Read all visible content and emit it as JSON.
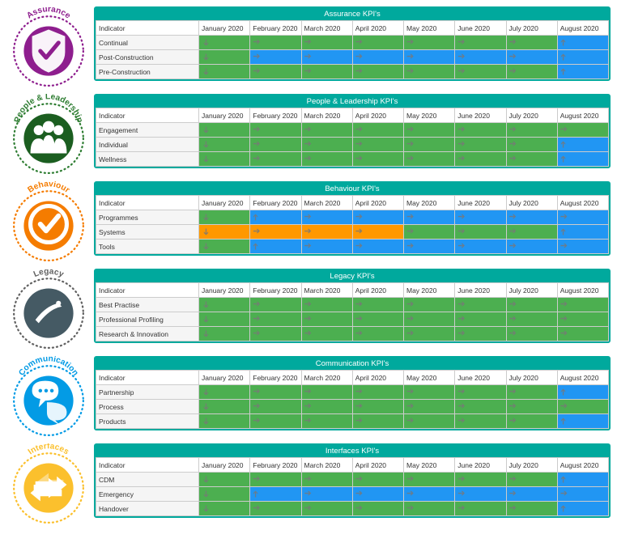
{
  "colors": {
    "header_bg": "#00a99d",
    "header_text": "#ffffff",
    "green": "#4caf50",
    "blue": "#2196f3",
    "orange": "#ff9800",
    "grey": "#e0e0e0",
    "arrow": "#8a8a8a"
  },
  "badge_colors": {
    "assurance": {
      "ring": "#8e1e8e",
      "center": "#8e1e8e"
    },
    "people": {
      "ring": "#2e7d32",
      "center": "#1b5e20"
    },
    "behaviour": {
      "ring": "#f57c00",
      "center": "#f57c00"
    },
    "legacy": {
      "ring": "#616161",
      "center": "#455a64"
    },
    "communication": {
      "ring": "#039be5",
      "center": "#039be5"
    },
    "interfaces": {
      "ring": "#fbc02d",
      "center": "#fbc02d"
    }
  },
  "months": [
    "January 2020",
    "February 2020",
    "March 2020",
    "April 2020",
    "May 2020",
    "June 2020",
    "July 2020",
    "August 2020"
  ],
  "sections": [
    {
      "key": "assurance",
      "title": "Assurance KPI's",
      "badge": "Assurance",
      "rows": [
        {
          "label": "Continual",
          "cells": [
            [
              "green",
              "down"
            ],
            [
              "green",
              "right"
            ],
            [
              "green",
              "right"
            ],
            [
              "green",
              "right"
            ],
            [
              "green",
              "right"
            ],
            [
              "green",
              "right"
            ],
            [
              "green",
              "right"
            ],
            [
              "blue",
              "up"
            ]
          ]
        },
        {
          "label": "Post-Construction",
          "cells": [
            [
              "green",
              "down"
            ],
            [
              "blue",
              "right"
            ],
            [
              "blue",
              "right"
            ],
            [
              "blue",
              "right"
            ],
            [
              "blue",
              "right"
            ],
            [
              "blue",
              "right"
            ],
            [
              "blue",
              "right"
            ],
            [
              "blue",
              "up"
            ]
          ]
        },
        {
          "label": "Pre-Construction",
          "cells": [
            [
              "green",
              "down"
            ],
            [
              "green",
              "right"
            ],
            [
              "green",
              "right"
            ],
            [
              "green",
              "right"
            ],
            [
              "green",
              "right"
            ],
            [
              "green",
              "right"
            ],
            [
              "green",
              "right"
            ],
            [
              "blue",
              "up"
            ]
          ]
        }
      ]
    },
    {
      "key": "people",
      "title": "People & Leadership KPI's",
      "badge": "People & Leadership",
      "rows": [
        {
          "label": "Engagement",
          "cells": [
            [
              "green",
              "down"
            ],
            [
              "green",
              "right"
            ],
            [
              "green",
              "right"
            ],
            [
              "green",
              "right"
            ],
            [
              "green",
              "right"
            ],
            [
              "green",
              "right"
            ],
            [
              "green",
              "right"
            ],
            [
              "green",
              "right"
            ]
          ]
        },
        {
          "label": "Individual",
          "cells": [
            [
              "green",
              "down"
            ],
            [
              "green",
              "right"
            ],
            [
              "green",
              "right"
            ],
            [
              "green",
              "right"
            ],
            [
              "green",
              "right"
            ],
            [
              "green",
              "right"
            ],
            [
              "green",
              "right"
            ],
            [
              "blue",
              "up"
            ]
          ]
        },
        {
          "label": "Wellness",
          "cells": [
            [
              "green",
              "down"
            ],
            [
              "green",
              "right"
            ],
            [
              "green",
              "right"
            ],
            [
              "green",
              "right"
            ],
            [
              "green",
              "right"
            ],
            [
              "green",
              "right"
            ],
            [
              "green",
              "right"
            ],
            [
              "blue",
              "up"
            ]
          ]
        }
      ]
    },
    {
      "key": "behaviour",
      "title": "Behaviour KPI's",
      "badge": "Behaviour",
      "rows": [
        {
          "label": "Programmes",
          "cells": [
            [
              "green",
              "down"
            ],
            [
              "blue",
              "up"
            ],
            [
              "blue",
              "right"
            ],
            [
              "blue",
              "right"
            ],
            [
              "blue",
              "right"
            ],
            [
              "blue",
              "right"
            ],
            [
              "blue",
              "right"
            ],
            [
              "blue",
              "right"
            ]
          ]
        },
        {
          "label": "Systems",
          "cells": [
            [
              "orange",
              "down"
            ],
            [
              "orange",
              "right"
            ],
            [
              "orange",
              "right"
            ],
            [
              "orange",
              "right"
            ],
            [
              "green",
              "right"
            ],
            [
              "green",
              "right"
            ],
            [
              "green",
              "right"
            ],
            [
              "blue",
              "up"
            ]
          ]
        },
        {
          "label": "Tools",
          "cells": [
            [
              "green",
              "down"
            ],
            [
              "blue",
              "up"
            ],
            [
              "blue",
              "right"
            ],
            [
              "blue",
              "right"
            ],
            [
              "blue",
              "right"
            ],
            [
              "blue",
              "right"
            ],
            [
              "blue",
              "right"
            ],
            [
              "blue",
              "right"
            ]
          ]
        }
      ]
    },
    {
      "key": "legacy",
      "title": "Legacy KPI's",
      "badge": "Legacy",
      "rows": [
        {
          "label": "Best Practise",
          "cells": [
            [
              "green",
              "down"
            ],
            [
              "green",
              "right"
            ],
            [
              "green",
              "right"
            ],
            [
              "green",
              "right"
            ],
            [
              "green",
              "right"
            ],
            [
              "green",
              "right"
            ],
            [
              "green",
              "right"
            ],
            [
              "green",
              "right"
            ]
          ]
        },
        {
          "label": "Professional Profiling",
          "cells": [
            [
              "green",
              "down"
            ],
            [
              "green",
              "right"
            ],
            [
              "green",
              "right"
            ],
            [
              "green",
              "right"
            ],
            [
              "green",
              "right"
            ],
            [
              "green",
              "right"
            ],
            [
              "green",
              "right"
            ],
            [
              "green",
              "right"
            ]
          ]
        },
        {
          "label": "Research & Innovation",
          "cells": [
            [
              "green",
              "down"
            ],
            [
              "green",
              "right"
            ],
            [
              "green",
              "right"
            ],
            [
              "green",
              "right"
            ],
            [
              "green",
              "right"
            ],
            [
              "green",
              "right"
            ],
            [
              "green",
              "right"
            ],
            [
              "green",
              "right"
            ]
          ]
        }
      ]
    },
    {
      "key": "communication",
      "title": "Communication KPI's",
      "badge": "Communication",
      "rows": [
        {
          "label": "Partnership",
          "cells": [
            [
              "green",
              "down"
            ],
            [
              "green",
              "right"
            ],
            [
              "green",
              "right"
            ],
            [
              "green",
              "right"
            ],
            [
              "green",
              "right"
            ],
            [
              "green",
              "right"
            ],
            [
              "green",
              "right"
            ],
            [
              "blue",
              "up"
            ]
          ]
        },
        {
          "label": "Process",
          "cells": [
            [
              "green",
              "down"
            ],
            [
              "green",
              "right"
            ],
            [
              "green",
              "right"
            ],
            [
              "green",
              "right"
            ],
            [
              "green",
              "right"
            ],
            [
              "green",
              "right"
            ],
            [
              "green",
              "right"
            ],
            [
              "green",
              "right"
            ]
          ]
        },
        {
          "label": "Products",
          "cells": [
            [
              "green",
              "down"
            ],
            [
              "green",
              "right"
            ],
            [
              "green",
              "right"
            ],
            [
              "green",
              "right"
            ],
            [
              "green",
              "right"
            ],
            [
              "green",
              "right"
            ],
            [
              "green",
              "right"
            ],
            [
              "blue",
              "up"
            ]
          ]
        }
      ]
    },
    {
      "key": "interfaces",
      "title": "Interfaces KPI's",
      "badge": "Interfaces",
      "rows": [
        {
          "label": "CDM",
          "cells": [
            [
              "green",
              "down"
            ],
            [
              "green",
              "right"
            ],
            [
              "green",
              "right"
            ],
            [
              "green",
              "right"
            ],
            [
              "green",
              "right"
            ],
            [
              "green",
              "right"
            ],
            [
              "green",
              "right"
            ],
            [
              "blue",
              "up"
            ]
          ]
        },
        {
          "label": "Emergency",
          "cells": [
            [
              "green",
              "down"
            ],
            [
              "blue",
              "up"
            ],
            [
              "blue",
              "right"
            ],
            [
              "blue",
              "right"
            ],
            [
              "blue",
              "right"
            ],
            [
              "blue",
              "right"
            ],
            [
              "blue",
              "right"
            ],
            [
              "blue",
              "right"
            ]
          ]
        },
        {
          "label": "Handover",
          "cells": [
            [
              "green",
              "down"
            ],
            [
              "green",
              "right"
            ],
            [
              "green",
              "right"
            ],
            [
              "green",
              "right"
            ],
            [
              "green",
              "right"
            ],
            [
              "green",
              "right"
            ],
            [
              "green",
              "right"
            ],
            [
              "blue",
              "up"
            ]
          ]
        }
      ]
    }
  ],
  "labels": {
    "indicator": "Indicator"
  }
}
